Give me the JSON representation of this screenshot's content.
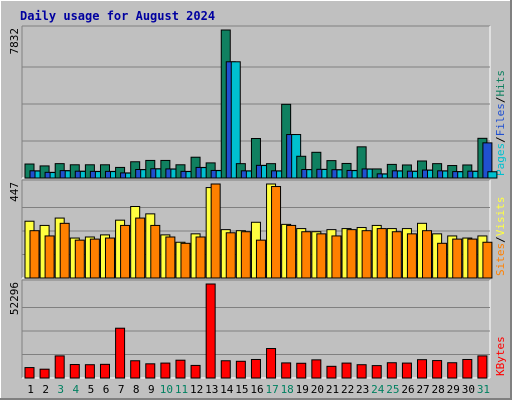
{
  "chart_data": {
    "type": "bar",
    "title": "Daily usage for August 2024",
    "categories": [
      "1",
      "2",
      "3",
      "4",
      "5",
      "6",
      "7",
      "8",
      "9",
      "10",
      "11",
      "12",
      "13",
      "14",
      "15",
      "16",
      "17",
      "18",
      "19",
      "20",
      "21",
      "22",
      "23",
      "24",
      "25",
      "26",
      "27",
      "28",
      "29",
      "30",
      "31"
    ],
    "weekend_days": [
      "3",
      "4",
      "10",
      "11",
      "17",
      "18",
      "24",
      "25",
      "31"
    ],
    "panels": [
      {
        "name": "pages-files-hits",
        "max_label": "7832",
        "max": 7832,
        "axis_labels": [
          {
            "text": "Pages",
            "color": "#00c0d0"
          },
          {
            "text": "Files",
            "color": "#2050d0"
          },
          {
            "text": "Hits",
            "color": "#108060"
          }
        ],
        "series": [
          {
            "name": "Hits",
            "color": "#108060",
            "values": [
              740,
              640,
              760,
              700,
              700,
              700,
              560,
              860,
              930,
              930,
              700,
              1100,
              800,
              7832,
              760,
              2090,
              760,
              3900,
              1150,
              1360,
              920,
              770,
              1650,
              480,
              720,
              690,
              900,
              760,
              660,
              690,
              2100
            ]
          },
          {
            "name": "Files",
            "color": "#2050d0",
            "values": [
              380,
              300,
              390,
              360,
              350,
              350,
              270,
              450,
              490,
              480,
              350,
              560,
              400,
              6150,
              380,
              670,
              380,
              2300,
              450,
              460,
              440,
              400,
              480,
              220,
              380,
              360,
              420,
              380,
              340,
              360,
              1860
            ]
          },
          {
            "name": "Pages",
            "color": "#00c0d0",
            "values": [
              370,
              290,
              380,
              350,
              340,
              340,
              260,
              440,
              480,
              470,
              340,
              550,
              390,
              6150,
              370,
              660,
              370,
              2300,
              440,
              450,
              430,
              390,
              470,
              210,
              370,
              350,
              410,
              370,
              330,
              350,
              330
            ]
          }
        ]
      },
      {
        "name": "visits-sites",
        "max_label": "447",
        "max": 447,
        "axis_labels": [
          {
            "text": "Sites",
            "color": "#ff8000"
          },
          {
            "text": "Visits",
            "color": "#ffff40"
          }
        ],
        "series": [
          {
            "name": "Visits",
            "color": "#ffff40",
            "values": [
              270,
              250,
              285,
              190,
              195,
              205,
              275,
              340,
              305,
              205,
              170,
              210,
              430,
              230,
              225,
              265,
              447,
              255,
              235,
              220,
              230,
              235,
              240,
              250,
              235,
              235,
              260,
              210,
              200,
              190,
              200
            ]
          },
          {
            "name": "Sites",
            "color": "#ff8000",
            "values": [
              225,
              200,
              260,
              180,
              185,
              190,
              250,
              285,
              250,
              195,
              165,
              195,
              447,
              215,
              220,
              180,
              435,
              250,
              220,
              210,
              200,
              230,
              225,
              235,
              220,
              210,
              225,
              165,
              185,
              185,
              170
            ]
          }
        ]
      },
      {
        "name": "kbytes",
        "max_label": "52296",
        "max": 52296,
        "axis_labels": [
          {
            "text": "KBytes",
            "color": "#ff0000"
          }
        ],
        "series": [
          {
            "name": "KBytes",
            "color": "#ff0000",
            "values": [
              5800,
              4900,
              12300,
              7500,
              7400,
              7600,
              27700,
              9600,
              7900,
              8300,
              9900,
              7000,
              52296,
              9600,
              9300,
              10300,
              16400,
              8400,
              8200,
              10100,
              6500,
              8300,
              7400,
              6900,
              8500,
              8300,
              10200,
              9700,
              8500,
              10300,
              12300
            ]
          }
        ]
      }
    ]
  }
}
